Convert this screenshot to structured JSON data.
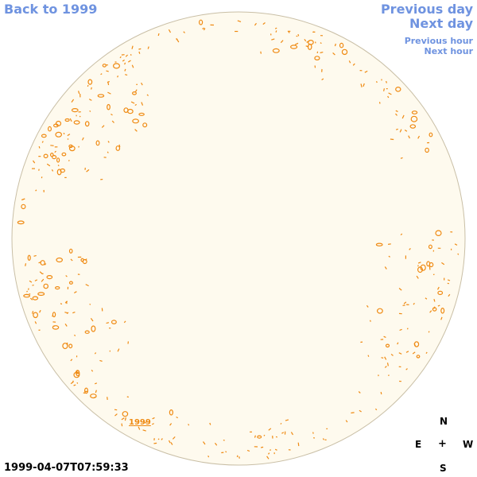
{
  "nav": {
    "back_label": "Back to 1999",
    "previous_day_label": "Previous day",
    "next_day_label": "Next day",
    "previous_hour_label": "Previous hour",
    "next_hour_label": "Next hour"
  },
  "disk": {
    "year_label": "1999"
  },
  "timestamp": "1999-04-07T07:59:33",
  "compass": {
    "north": "N",
    "south": "S",
    "east": "E",
    "west": "W",
    "center": "+"
  },
  "colors": {
    "link": "#6f93e0",
    "disk_fill": "#fefaee",
    "disk_edge": "#c9bfa6",
    "feature": "#ef8a12"
  }
}
